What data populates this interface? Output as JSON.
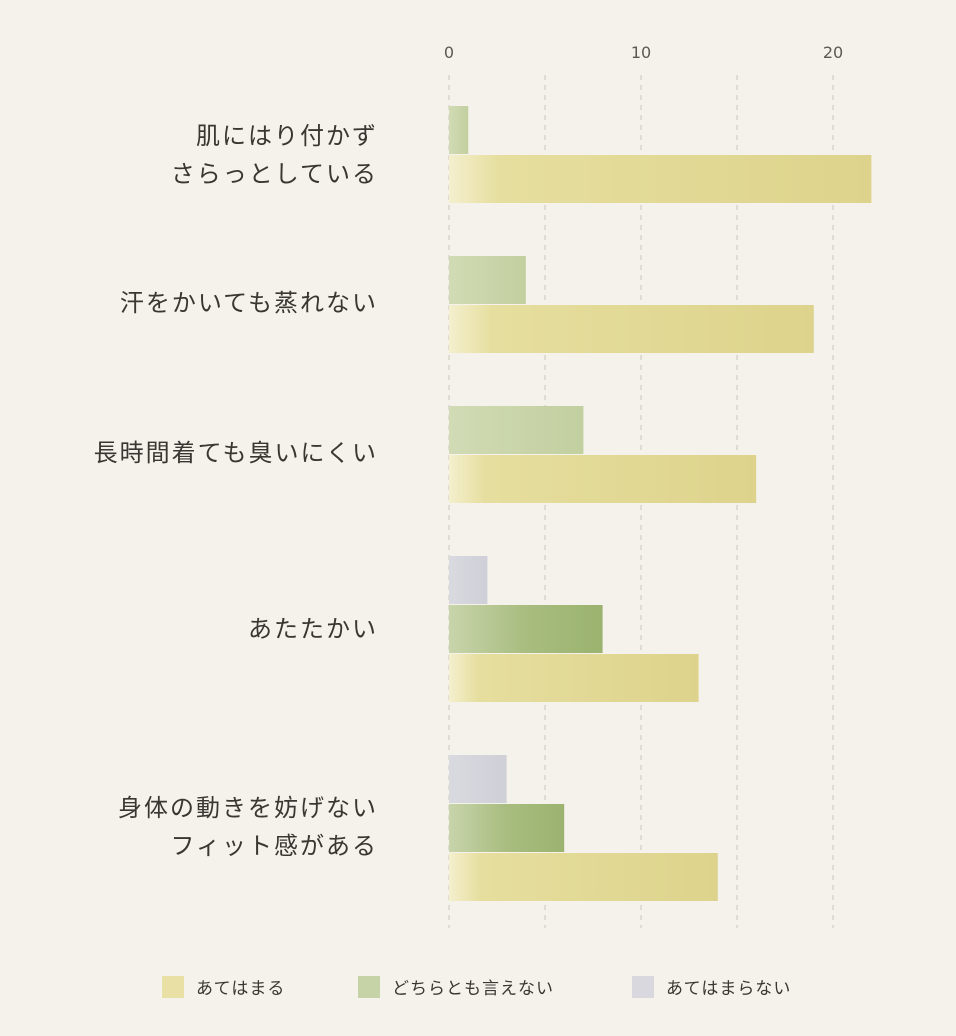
{
  "chart_data": {
    "type": "bar",
    "orientation": "horizontal",
    "categories": [
      [
        "肌にはり付かず",
        "さらっとしている"
      ],
      [
        "汗をかいても蒸れない"
      ],
      [
        "長時間着ても臭いにくい"
      ],
      [
        "あたたかい"
      ],
      [
        "身体の動きを妨げない",
        "フィット感がある"
      ]
    ],
    "series": [
      {
        "name": "あてはまらない",
        "color": "#d7d6dd",
        "values": [
          0,
          0,
          0,
          2,
          3
        ]
      },
      {
        "name": "どちらとも言えない",
        "color": "#c3d1a3",
        "values": [
          1,
          4,
          7,
          8,
          6
        ]
      },
      {
        "name": "あてはまる",
        "color": "#e3dc9b",
        "values": [
          22,
          19,
          16,
          13,
          14
        ]
      }
    ],
    "x_ticks": [
      "0",
      "10",
      "20"
    ],
    "xlim": [
      0,
      22
    ],
    "grid": true,
    "legend_position": "bottom",
    "legend": [
      {
        "label": "あてはまる",
        "color": "#e8e0a5"
      },
      {
        "label": "どちらとも言えない",
        "color": "#c5d3a6"
      },
      {
        "label": "あてはまらない",
        "color": "#d9d8de"
      }
    ]
  }
}
